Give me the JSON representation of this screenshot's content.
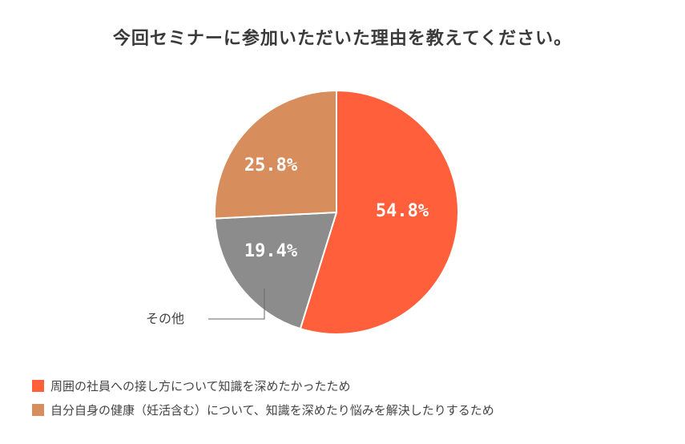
{
  "title": "今回セミナーに参加いただいた理由を教えてください。",
  "chart_data": {
    "type": "pie",
    "title": "今回セミナーに参加いただいた理由を教えてください。",
    "slices": [
      {
        "label": "周囲の社員への接し方について知識を深めたかったため",
        "value": 54.8,
        "value_label": "54.8%",
        "color": "#FF5F3A"
      },
      {
        "label": "その他",
        "value": 19.4,
        "value_label": "19.4%",
        "color": "#8C8C8C"
      },
      {
        "label": "自分自身の健康（妊活含む）について、知識を深めたり悩みを解決したりするため",
        "value": 25.8,
        "value_label": "25.8%",
        "color": "#D88D5C"
      }
    ],
    "start": "12 o'clock, clockwise",
    "legend_position": "bottom-left"
  },
  "callout": {
    "text": "その他"
  },
  "legend": [
    {
      "label": "周囲の社員への接し方について知識を深めたかったため",
      "color": "#FF5F3A"
    },
    {
      "label": "自分自身の健康（妊活含む）について、知識を深めたり悩みを解決したりするため",
      "color": "#D88D5C"
    }
  ]
}
